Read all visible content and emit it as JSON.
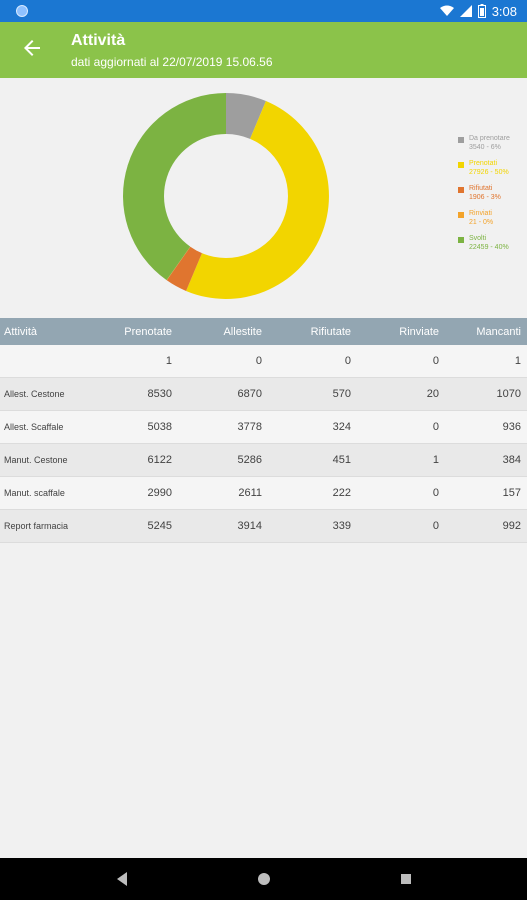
{
  "status_bar": {
    "time": "3:08"
  },
  "app_bar": {
    "title": "Attività",
    "subtitle": "dati aggiornati al 22/07/2019 15.06.56"
  },
  "colors": {
    "da_prenotare": "#9e9e9e",
    "prenotati": "#f2d500",
    "rifiutati": "#e0752f",
    "rinviati": "#f3a32a",
    "svolti": "#7cb342",
    "app_bar": "#8bc34a",
    "status_bar": "#1b77d2",
    "table_header": "#93a6b2"
  },
  "chart_data": {
    "type": "pie",
    "donut": true,
    "labels": [
      "Da prenotare",
      "Prenotati",
      "Rifiutati",
      "Rinviati",
      "Svolti"
    ],
    "values": [
      3540,
      27926,
      1906,
      21,
      22459
    ],
    "legend_position": "right",
    "legend": [
      {
        "line1": "Da prenotare",
        "line2": "3540 - 6%",
        "color": "#9e9e9e"
      },
      {
        "line1": "Prenotati",
        "line2": "27926 - 50%",
        "color": "#f2d500"
      },
      {
        "line1": "Rifiutati",
        "line2": "1906 - 3%",
        "color": "#e0752f"
      },
      {
        "line1": "Rinviati",
        "line2": "21 - 0%",
        "color": "#f3a32a"
      },
      {
        "line1": "Svolti",
        "line2": "22459 - 40%",
        "color": "#7cb342"
      }
    ]
  },
  "table": {
    "headers": [
      "Attività",
      "Prenotate",
      "Allestite",
      "Rifiutate",
      "Rinviate",
      "Mancanti"
    ],
    "rows": [
      [
        "",
        "1",
        "0",
        "0",
        "0",
        "1"
      ],
      [
        "Allest. Cestone",
        "8530",
        "6870",
        "570",
        "20",
        "1070"
      ],
      [
        "Allest. Scaffale",
        "5038",
        "3778",
        "324",
        "0",
        "936"
      ],
      [
        "Manut. Cestone",
        "6122",
        "5286",
        "451",
        "1",
        "384"
      ],
      [
        "Manut. scaffale",
        "2990",
        "2611",
        "222",
        "0",
        "157"
      ],
      [
        "Report farmacia",
        "5245",
        "3914",
        "339",
        "0",
        "992"
      ]
    ]
  }
}
